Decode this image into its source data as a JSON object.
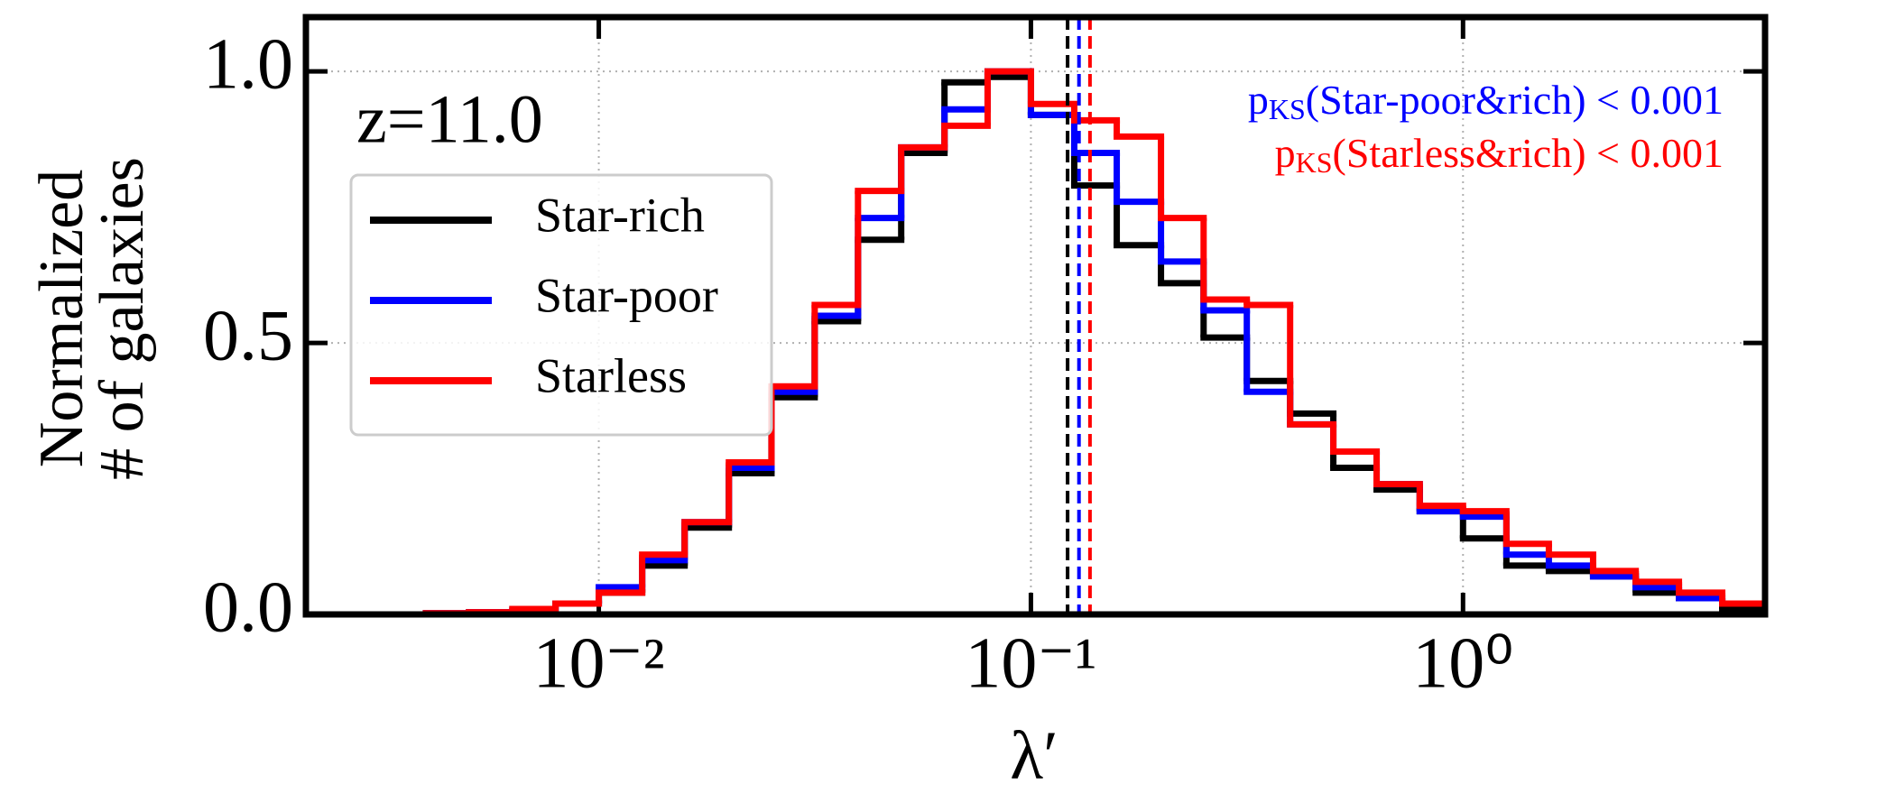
{
  "chart_data": {
    "type": "step-histogram",
    "x_label": "λ′",
    "y_label": [
      "Normalized",
      "# of galaxies"
    ],
    "log_x": true,
    "grid": true,
    "legend_loc": "upper left",
    "annotations": [
      {
        "text": "z=11.0",
        "color": "#000000"
      },
      {
        "prefix": "p",
        "sub": "KS",
        "text": "(Star-poor&rich) < 0.001",
        "color": "#0000ff"
      },
      {
        "prefix": "p",
        "sub": "KS",
        "text": "(Starless&rich) < 0.001",
        "color": "#ff0000"
      }
    ],
    "xlim": [
      0.0021,
      5.0
    ],
    "ylim": [
      0,
      1.1
    ],
    "xticks": [
      {
        "value": 0.01,
        "label": "10⁻²"
      },
      {
        "value": 0.1,
        "label": "10⁻¹"
      },
      {
        "value": 1,
        "label": "10⁰"
      }
    ],
    "yticks": [
      {
        "value": 0,
        "label": "0.0"
      },
      0.5,
      {
        "value": 1,
        "label": "1.0"
      }
    ],
    "bins": [
      0.00251,
      0.00316,
      0.00398,
      0.00501,
      0.00631,
      0.00794,
      0.01,
      0.0126,
      0.0158,
      0.02,
      0.0251,
      0.0316,
      0.0398,
      0.0501,
      0.0631,
      0.0794,
      0.1,
      0.126,
      0.158,
      0.2,
      0.251,
      0.316,
      0.398,
      0.501,
      0.631,
      0.794,
      1,
      1.26,
      1.58,
      2,
      2.51,
      3.16,
      3.98,
      5.01
    ],
    "series": [
      {
        "name": "Star-rich",
        "color": "#000000",
        "median": 0.1216,
        "values": [
          0,
          0,
          0.002,
          0.004,
          0.005,
          0.02,
          0.04,
          0.09,
          0.16,
          0.26,
          0.4,
          0.54,
          0.69,
          0.85,
          0.98,
          0.99,
          0.92,
          0.79,
          0.68,
          0.61,
          0.51,
          0.43,
          0.37,
          0.27,
          0.23,
          0.19,
          0.14,
          0.09,
          0.08,
          0.07,
          0.04,
          0.03,
          0.01
        ]
      },
      {
        "name": "Star-poor",
        "color": "#0000ff",
        "median": 0.1292,
        "values": [
          0,
          0,
          0.002,
          0.004,
          0.008,
          0.02,
          0.05,
          0.1,
          0.17,
          0.27,
          0.41,
          0.55,
          0.73,
          0.86,
          0.93,
          1.0,
          0.92,
          0.85,
          0.76,
          0.65,
          0.56,
          0.41,
          0.35,
          0.3,
          0.24,
          0.19,
          0.18,
          0.11,
          0.09,
          0.07,
          0.05,
          0.03,
          0.02
        ]
      },
      {
        "name": "Starless",
        "color": "#ff0000",
        "median": 0.137,
        "values": [
          0,
          0,
          0.002,
          0.004,
          0.01,
          0.02,
          0.04,
          0.11,
          0.17,
          0.28,
          0.42,
          0.57,
          0.78,
          0.86,
          0.9,
          1.0,
          0.94,
          0.91,
          0.88,
          0.73,
          0.58,
          0.57,
          0.35,
          0.3,
          0.24,
          0.2,
          0.19,
          0.13,
          0.11,
          0.08,
          0.06,
          0.04,
          0.02
        ]
      }
    ]
  }
}
